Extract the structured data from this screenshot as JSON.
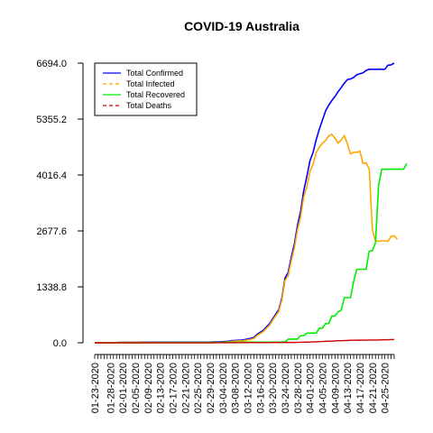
{
  "chart_data": {
    "type": "line",
    "title": "COVID-19 Australia",
    "xlabel": "",
    "ylabel": "",
    "ylim": [
      0,
      6694.0
    ],
    "y_ticks": [
      "0.0",
      "1338.8",
      "2677.6",
      "4016.4",
      "5355.2",
      "6694.0"
    ],
    "x_start": "01-23-2020",
    "x_labels": [
      "01-23-2020",
      "01-28-2020",
      "02-01-2020",
      "02-05-2020",
      "02-09-2020",
      "02-13-2020",
      "02-17-2020",
      "02-21-2020",
      "02-25-2020",
      "02-29-2020",
      "03-04-2020",
      "03-08-2020",
      "03-12-2020",
      "03-16-2020",
      "03-20-2020",
      "03-24-2020",
      "03-28-2020",
      "04-01-2020",
      "04-05-2020",
      "04-09-2020",
      "04-13-2020",
      "04-17-2020",
      "04-21-2020",
      "04-25-2020"
    ],
    "legend_position": "top-left",
    "series": [
      {
        "name": "Total Confirmed",
        "color": "#0000ff",
        "dash": "solid",
        "values": [
          0,
          0,
          0,
          0,
          4,
          5,
          5,
          6,
          9,
          9,
          12,
          12,
          12,
          13,
          13,
          14,
          15,
          15,
          15,
          15,
          15,
          15,
          15,
          15,
          15,
          15,
          15,
          15,
          15,
          15,
          15,
          15,
          15,
          15,
          15,
          15,
          15,
          15,
          22,
          23,
          25,
          27,
          30,
          39,
          52,
          55,
          60,
          63,
          76,
          91,
          107,
          128,
          200,
          250,
          297,
          377,
          452,
          568,
          681,
          791,
          1071,
          1549,
          1682,
          2044,
          2364,
          2810,
          3143,
          3640,
          3984,
          4361,
          4559,
          4862,
          5116,
          5330,
          5550,
          5687,
          5797,
          5895,
          6010,
          6108,
          6215,
          6303,
          6315,
          6351,
          6415,
          6440,
          6462,
          6522,
          6547,
          6547,
          6547,
          6547,
          6547,
          6547,
          6645,
          6652,
          6694
        ]
      },
      {
        "name": "Total Infected",
        "color": "#ffa500",
        "dash": "solid",
        "values": [
          0,
          0,
          0,
          0,
          4,
          5,
          5,
          6,
          9,
          7,
          10,
          10,
          10,
          11,
          11,
          11,
          10,
          10,
          8,
          8,
          7,
          7,
          7,
          5,
          5,
          5,
          5,
          5,
          5,
          5,
          5,
          5,
          5,
          5,
          5,
          5,
          5,
          5,
          12,
          12,
          13,
          13,
          15,
          23,
          36,
          39,
          44,
          44,
          55,
          68,
          82,
          102,
          172,
          221,
          267,
          345,
          418,
          533,
          644,
          750,
          1019,
          1490,
          1605,
          1960,
          2270,
          2705,
          3014,
          3489,
          3740,
          4108,
          4275,
          4555,
          4680,
          4780,
          4840,
          4950,
          4991,
          4900,
          4780,
          4850,
          4960,
          4760,
          4520,
          4560,
          4560,
          4590,
          4290,
          4310,
          4160,
          2700,
          2440,
          2430,
          2440,
          2440,
          2430,
          2550,
          2560,
          2480
        ]
      },
      {
        "name": "Total Recovered",
        "color": "#00ee00",
        "dash": "solid",
        "values": [
          0,
          0,
          0,
          0,
          0,
          0,
          0,
          0,
          0,
          2,
          2,
          2,
          2,
          2,
          2,
          3,
          5,
          5,
          7,
          7,
          8,
          8,
          8,
          10,
          10,
          10,
          10,
          10,
          10,
          10,
          10,
          10,
          10,
          10,
          10,
          10,
          10,
          10,
          10,
          11,
          11,
          11,
          11,
          11,
          11,
          11,
          11,
          14,
          14,
          15,
          16,
          16,
          16,
          16,
          16,
          16,
          16,
          16,
          16,
          16,
          20,
          20,
          88,
          88,
          88,
          88,
          170,
          170,
          230,
          230,
          230,
          230,
          350,
          350,
          460,
          460,
          640,
          640,
          741,
          780,
          1080,
          1080,
          1080,
          1470,
          1760,
          1760,
          1760,
          1760,
          2200,
          2200,
          2400,
          3770,
          4155,
          4155,
          4155,
          4155,
          4155,
          4155,
          4155,
          4155,
          4290
        ]
      },
      {
        "name": "Total Deaths",
        "color": "#cc0000",
        "dash": "dashed",
        "values": [
          0,
          0,
          0,
          0,
          0,
          0,
          0,
          0,
          0,
          0,
          0,
          0,
          0,
          0,
          0,
          0,
          0,
          0,
          0,
          0,
          0,
          0,
          0,
          0,
          0,
          0,
          0,
          0,
          0,
          0,
          0,
          0,
          0,
          0,
          0,
          0,
          0,
          0,
          0,
          1,
          1,
          1,
          1,
          2,
          2,
          2,
          3,
          3,
          3,
          3,
          3,
          3,
          3,
          3,
          5,
          5,
          5,
          6,
          6,
          6,
          7,
          7,
          8,
          8,
          8,
          13,
          13,
          14,
          16,
          18,
          21,
          24,
          28,
          30,
          35,
          40,
          40,
          45,
          50,
          51,
          53,
          56,
          60,
          61,
          62,
          62,
          63,
          63,
          66,
          67,
          67,
          67,
          71,
          71,
          74,
          77,
          79
        ]
      }
    ]
  }
}
